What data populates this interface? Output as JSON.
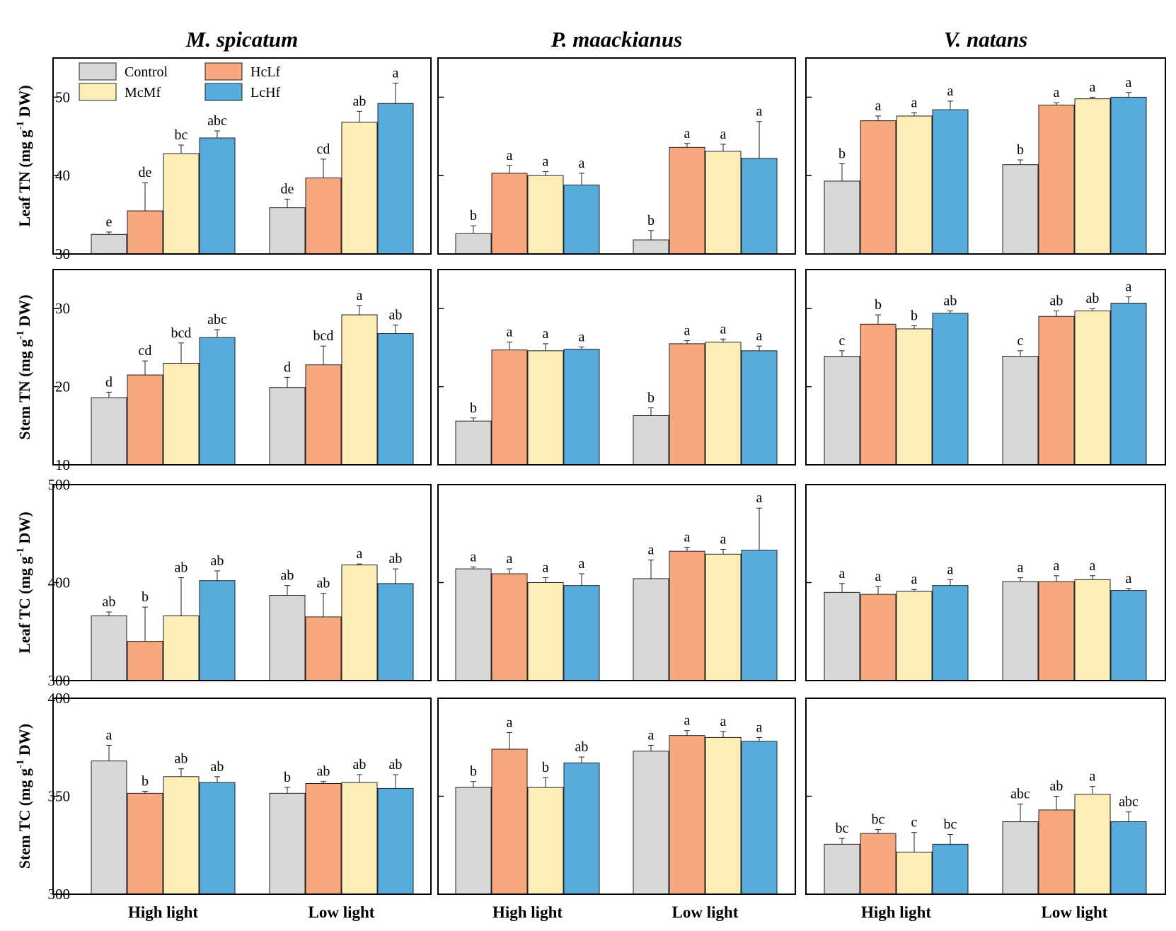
{
  "chart_data": {
    "type": "bar",
    "panel_titles": [
      "M. spicatum",
      "P. maackianus",
      "V. natans"
    ],
    "groups": [
      "High light",
      "Low light"
    ],
    "legend": {
      "position": "top-left",
      "entries": [
        {
          "name": "Control",
          "color": "#d8d8d8"
        },
        {
          "name": "HcLf",
          "color": "#f7a87f"
        },
        {
          "name": "McMf",
          "color": "#fdedb6"
        },
        {
          "name": "LcHf",
          "color": "#57acdc"
        }
      ]
    },
    "rows": [
      {
        "ylabel_main": "Leaf TN (mg g",
        "ylabel_sup": "-1",
        "ylabel_end": " DW)",
        "ylim": [
          30,
          55
        ],
        "yticks": [
          30,
          40,
          50
        ],
        "panels": [
          {
            "values": [
              [
                32.5,
                35.5,
                42.8,
                44.8
              ],
              [
                35.9,
                39.7,
                46.8,
                49.2
              ]
            ],
            "errors": [
              [
                0.3,
                3.6,
                1.1,
                0.9
              ],
              [
                1.1,
                2.4,
                1.4,
                2.6
              ]
            ],
            "labels": [
              [
                "e",
                "de",
                "bc",
                "abc"
              ],
              [
                "de",
                "cd",
                "ab",
                "a"
              ]
            ]
          },
          {
            "values": [
              [
                32.6,
                40.3,
                40.0,
                38.8
              ],
              [
                31.8,
                43.6,
                43.1,
                42.2
              ]
            ],
            "errors": [
              [
                1.0,
                1.0,
                0.5,
                1.5
              ],
              [
                1.2,
                0.5,
                0.9,
                4.7
              ]
            ],
            "labels": [
              [
                "b",
                "a",
                "a",
                "a"
              ],
              [
                "b",
                "a",
                "a",
                "a"
              ]
            ]
          },
          {
            "values": [
              [
                39.3,
                47.0,
                47.6,
                48.4
              ],
              [
                41.4,
                49.0,
                49.8,
                50.0
              ]
            ],
            "errors": [
              [
                2.2,
                0.6,
                0.4,
                1.1
              ],
              [
                0.6,
                0.3,
                0.2,
                0.6
              ]
            ],
            "labels": [
              [
                "b",
                "a",
                "a",
                "a"
              ],
              [
                "b",
                "a",
                "a",
                "a"
              ]
            ]
          }
        ]
      },
      {
        "ylabel_main": "Stem TN (mg g",
        "ylabel_sup": "-1",
        "ylabel_end": " DW)",
        "ylim": [
          10,
          35
        ],
        "yticks": [
          10,
          20,
          30
        ],
        "panels": [
          {
            "values": [
              [
                18.6,
                21.5,
                23.0,
                26.3
              ],
              [
                19.9,
                22.8,
                29.2,
                26.8
              ]
            ],
            "errors": [
              [
                0.7,
                1.8,
                2.6,
                1.0
              ],
              [
                1.3,
                2.4,
                1.2,
                1.1
              ]
            ],
            "labels": [
              [
                "d",
                "cd",
                "bcd",
                "abc"
              ],
              [
                "d",
                "bcd",
                "a",
                "ab"
              ]
            ]
          },
          {
            "values": [
              [
                15.6,
                24.7,
                24.6,
                24.8
              ],
              [
                16.3,
                25.5,
                25.7,
                24.6
              ]
            ],
            "errors": [
              [
                0.4,
                1.0,
                0.9,
                0.3
              ],
              [
                1.0,
                0.4,
                0.4,
                0.6
              ]
            ],
            "labels": [
              [
                "b",
                "a",
                "a",
                "a"
              ],
              [
                "b",
                "a",
                "a",
                "a"
              ]
            ]
          },
          {
            "values": [
              [
                23.9,
                28.0,
                27.4,
                29.4
              ],
              [
                23.9,
                29.0,
                29.7,
                30.7
              ]
            ],
            "errors": [
              [
                0.7,
                1.2,
                0.4,
                0.3
              ],
              [
                0.7,
                0.7,
                0.3,
                0.8
              ]
            ],
            "labels": [
              [
                "c",
                "b",
                "b",
                "ab"
              ],
              [
                "c",
                "ab",
                "ab",
                "a"
              ]
            ]
          }
        ]
      },
      {
        "ylabel_main": "Leaf TC (mg g",
        "ylabel_sup": "-1",
        "ylabel_end": " DW)",
        "ylim": [
          300,
          500
        ],
        "yticks": [
          300,
          400,
          500
        ],
        "panels": [
          {
            "values": [
              [
                366,
                340,
                366,
                402
              ],
              [
                387,
                365,
                418,
                399
              ]
            ],
            "errors": [
              [
                4,
                35,
                39,
                10
              ],
              [
                10,
                24,
                1,
                15
              ]
            ],
            "labels": [
              [
                "ab",
                "b",
                "ab",
                "ab"
              ],
              [
                "ab",
                "ab",
                "a",
                "ab"
              ]
            ]
          },
          {
            "values": [
              [
                414,
                409,
                400,
                397
              ],
              [
                404,
                432,
                429,
                433
              ]
            ],
            "errors": [
              [
                2,
                5,
                5,
                12
              ],
              [
                19,
                4,
                5,
                43
              ]
            ],
            "labels": [
              [
                "a",
                "a",
                "a",
                "a"
              ],
              [
                "a",
                "a",
                "a",
                "a"
              ]
            ]
          },
          {
            "values": [
              [
                390,
                388,
                391,
                397
              ],
              [
                401,
                401,
                403,
                392
              ]
            ],
            "errors": [
              [
                9,
                8,
                2,
                6
              ],
              [
                4,
                6,
                4,
                2
              ]
            ],
            "labels": [
              [
                "a",
                "a",
                "a",
                "a"
              ],
              [
                "a",
                "a",
                "a",
                "a"
              ]
            ]
          }
        ]
      },
      {
        "ylabel_main": "Stem TC (mg g",
        "ylabel_sup": "-1",
        "ylabel_end": " DW)",
        "ylim": [
          300,
          400
        ],
        "yticks": [
          300,
          350,
          400
        ],
        "panels": [
          {
            "values": [
              [
                368,
                351.5,
                360,
                357
              ],
              [
                351.5,
                356.5,
                357,
                354
              ]
            ],
            "errors": [
              [
                8,
                1,
                4,
                3
              ],
              [
                3,
                1,
                4,
                7
              ]
            ],
            "labels": [
              [
                "a",
                "b",
                "ab",
                "ab"
              ],
              [
                "b",
                "ab",
                "ab",
                "ab"
              ]
            ]
          },
          {
            "values": [
              [
                354.5,
                374,
                354.5,
                367
              ],
              [
                373,
                381,
                380,
                378
              ]
            ],
            "errors": [
              [
                3,
                8.5,
                5,
                3
              ],
              [
                3,
                2.5,
                3,
                2
              ]
            ],
            "labels": [
              [
                "b",
                "a",
                "b",
                "ab"
              ],
              [
                "a",
                "a",
                "a",
                "a"
              ]
            ]
          },
          {
            "values": [
              [
                325.5,
                331,
                321.5,
                325.5
              ],
              [
                337,
                343,
                351,
                337
              ]
            ],
            "errors": [
              [
                3,
                2,
                10,
                5
              ],
              [
                9,
                7,
                4,
                5
              ]
            ],
            "labels": [
              [
                "bc",
                "bc",
                "c",
                "bc"
              ],
              [
                "abc",
                "ab",
                "a",
                "abc"
              ]
            ]
          }
        ]
      }
    ]
  }
}
